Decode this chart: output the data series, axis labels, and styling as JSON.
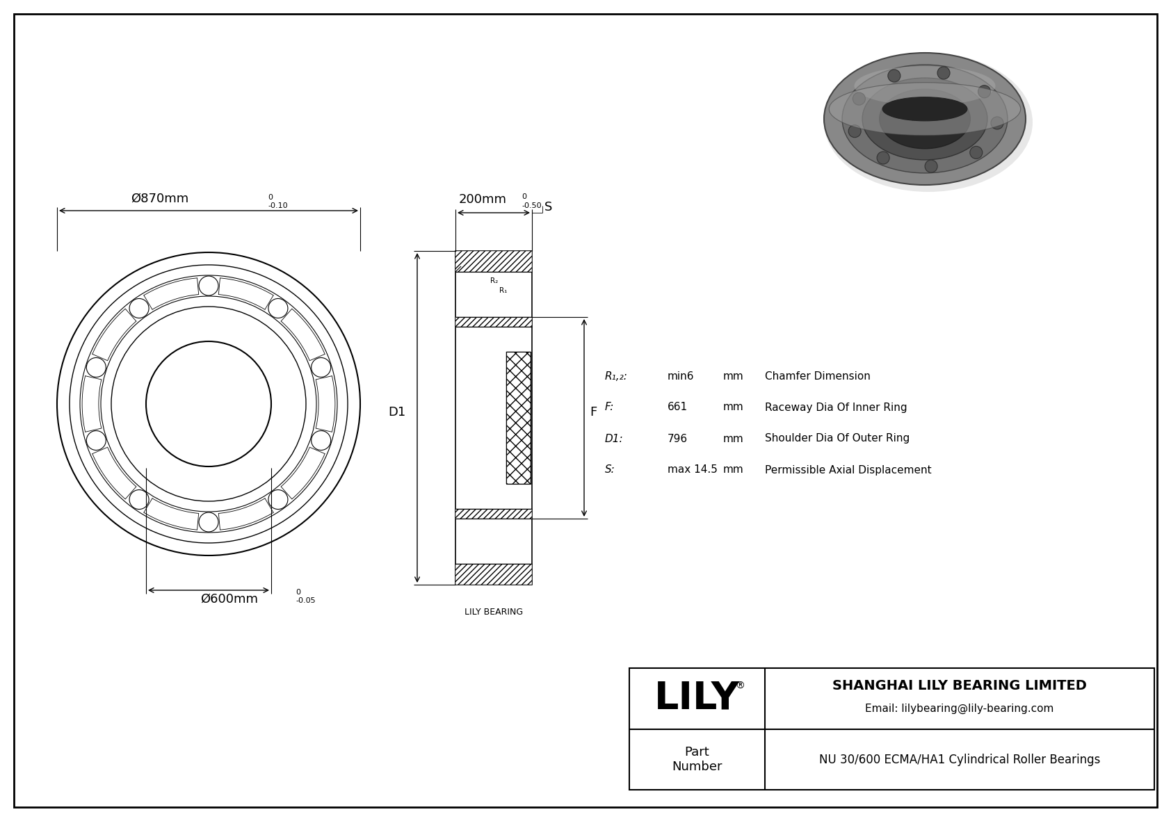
{
  "bg_color": "#ffffff",
  "line_color": "#000000",
  "border_color": "#000000",
  "title_company": "SHANGHAI LILY BEARING LIMITED",
  "title_email": "Email: lilybearing@lily-bearing.com",
  "part_label": "Part\nNumber",
  "part_number": "NU 30/600 ECMA/HA1 Cylindrical Roller Bearings",
  "lily_logo": "LILY",
  "dim_outer": "Ø870mm",
  "dim_outer_tol_top": "0",
  "dim_outer_tol_bot": "-0.10",
  "dim_inner": "Ø600mm",
  "dim_inner_tol_top": "0",
  "dim_inner_tol_bot": "-0.05",
  "dim_width": "200mm",
  "dim_width_tol_top": "0",
  "dim_width_tol_bot": "-0.50",
  "label_D1": "D1",
  "label_F": "F",
  "label_S": "S",
  "label_R1": "R₁",
  "label_R2": "R₂",
  "spec_R": "R₁,₂:",
  "spec_R_val": "min6",
  "spec_R_unit": "mm",
  "spec_R_desc": "Chamfer Dimension",
  "spec_F": "F:",
  "spec_F_val": "661",
  "spec_F_unit": "mm",
  "spec_F_desc": "Raceway Dia Of Inner Ring",
  "spec_D1": "D1:",
  "spec_D1_val": "796",
  "spec_D1_unit": "mm",
  "spec_D1_desc": "Shoulder Dia Of Outer Ring",
  "spec_S": "S:",
  "spec_S_val": "max 14.5",
  "spec_S_unit": "mm",
  "spec_S_desc": "Permissible Axial Displacement",
  "lily_bearing_label": "LILY BEARING"
}
